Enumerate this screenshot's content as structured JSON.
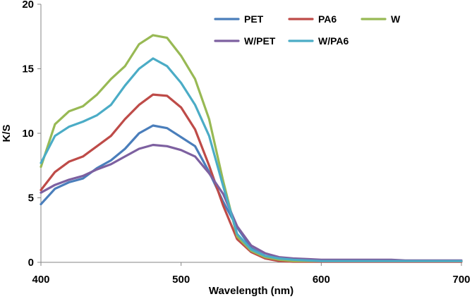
{
  "chart_data": {
    "type": "line",
    "title": "",
    "xlabel": "Wavelength (nm)",
    "ylabel": "K/S",
    "xlim": [
      400,
      700
    ],
    "ylim": [
      0,
      20
    ],
    "xticks": [
      400,
      500,
      600,
      700
    ],
    "yticks": [
      0,
      5,
      10,
      15,
      20
    ],
    "grid": false,
    "legend_position": "top-right",
    "x": [
      400,
      410,
      420,
      430,
      440,
      450,
      460,
      470,
      480,
      490,
      500,
      510,
      520,
      530,
      540,
      550,
      560,
      570,
      580,
      590,
      600,
      610,
      620,
      630,
      640,
      650,
      660,
      670,
      680,
      690,
      700
    ],
    "series": [
      {
        "name": "PET",
        "color": "#4A7EBB",
        "values": [
          4.5,
          5.7,
          6.2,
          6.5,
          7.3,
          7.9,
          8.8,
          10.0,
          10.6,
          10.4,
          9.7,
          9.0,
          7.0,
          4.7,
          2.7,
          1.1,
          0.5,
          0.3,
          0.2,
          0.2,
          0.15,
          0.15,
          0.15,
          0.15,
          0.15,
          0.15,
          0.1,
          0.1,
          0.1,
          0.1,
          0.1
        ]
      },
      {
        "name": "PA6",
        "color": "#BE4B48",
        "values": [
          5.6,
          7.0,
          7.8,
          8.2,
          9.0,
          9.8,
          11.1,
          12.2,
          13.0,
          12.9,
          12.0,
          10.3,
          7.5,
          4.4,
          1.8,
          0.8,
          0.3,
          0.1,
          0.05,
          0.05,
          0.05,
          0.05,
          0.05,
          0.05,
          0.05,
          0.05,
          0.05,
          0.05,
          0.05,
          0.05,
          0.05
        ]
      },
      {
        "name": "W",
        "color": "#98B954",
        "values": [
          7.4,
          10.7,
          11.7,
          12.1,
          13.0,
          14.2,
          15.2,
          16.9,
          17.6,
          17.4,
          16.0,
          14.2,
          11.1,
          6.3,
          2.0,
          0.9,
          0.4,
          0.2,
          0.1,
          0.1,
          0.1,
          0.1,
          0.1,
          0.1,
          0.1,
          0.1,
          0.1,
          0.1,
          0.1,
          0.1,
          0.1
        ]
      },
      {
        "name": "W/PET",
        "color": "#7D60A0",
        "values": [
          5.4,
          6.0,
          6.4,
          6.7,
          7.2,
          7.6,
          8.2,
          8.8,
          9.1,
          9.0,
          8.7,
          8.2,
          6.9,
          5.3,
          2.8,
          1.3,
          0.7,
          0.4,
          0.3,
          0.25,
          0.2,
          0.2,
          0.2,
          0.2,
          0.2,
          0.2,
          0.15,
          0.15,
          0.15,
          0.15,
          0.15
        ]
      },
      {
        "name": "W/PA6",
        "color": "#4BACC6",
        "values": [
          7.7,
          9.8,
          10.5,
          10.9,
          11.4,
          12.2,
          13.7,
          15.0,
          15.8,
          15.2,
          13.9,
          12.2,
          9.8,
          5.9,
          2.2,
          1.0,
          0.5,
          0.3,
          0.2,
          0.15,
          0.1,
          0.1,
          0.1,
          0.1,
          0.1,
          0.1,
          0.1,
          0.1,
          0.1,
          0.1,
          0.1
        ]
      }
    ]
  }
}
